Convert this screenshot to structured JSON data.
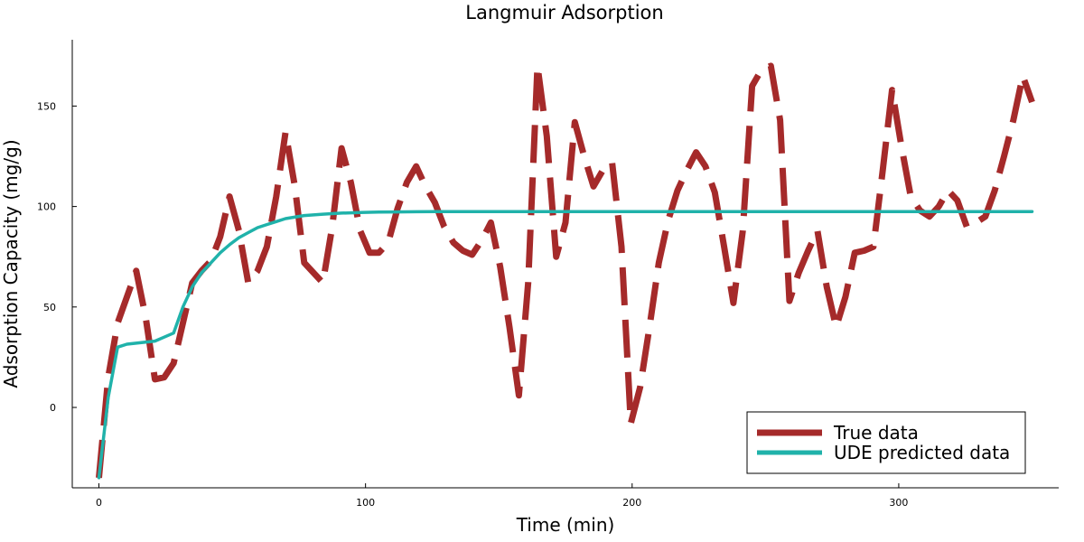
{
  "chart_data": {
    "type": "line",
    "title": "Langmuir Adsorption",
    "xlabel": "Time (min)",
    "ylabel": "Adsorption Capacity (mg/g)",
    "xlim": [
      -10,
      360
    ],
    "ylim": [
      -40,
      183
    ],
    "xticks": [
      0,
      100,
      200,
      300
    ],
    "yticks": [
      0,
      50,
      100,
      150
    ],
    "grid": false,
    "legend_position": "bottom-right",
    "series": [
      {
        "name": "True data",
        "color": "#a52a2a",
        "style": "dashed",
        "x": [
          0,
          3.5,
          7,
          10.5,
          14,
          17.5,
          21,
          24.5,
          28,
          31.5,
          35,
          38.5,
          42,
          45.5,
          49,
          52.5,
          56,
          59.5,
          63,
          66.5,
          70,
          73.5,
          77,
          80.5,
          84,
          87.5,
          91,
          94.5,
          98,
          101.5,
          105,
          108.5,
          112,
          115.5,
          119,
          122.5,
          126,
          129.5,
          133,
          136.5,
          140,
          143.5,
          147,
          150.5,
          154,
          157.5,
          161,
          164.5,
          168,
          171.5,
          175,
          178.5,
          182,
          185.5,
          189,
          192.5,
          196,
          199.5,
          203,
          206.5,
          210,
          213.5,
          217,
          220.5,
          224,
          227.5,
          231,
          234.5,
          238,
          241.5,
          245,
          248.5,
          252,
          255.5,
          259,
          262.5,
          266,
          269.5,
          273,
          276.5,
          280,
          283.5,
          287,
          290.5,
          294,
          297.5,
          301,
          304.5,
          308,
          311.5,
          315,
          318.5,
          322,
          325.5,
          329,
          332.5,
          336,
          339.5,
          343,
          346.5,
          350
        ],
        "y": [
          -35,
          15,
          42,
          55,
          68,
          45,
          14,
          15,
          22,
          42,
          62,
          68,
          73,
          85,
          105,
          88,
          62,
          68,
          80,
          105,
          137,
          110,
          72,
          67,
          62,
          90,
          129,
          112,
          88,
          77,
          77,
          82,
          99,
          112,
          120,
          110,
          102,
          90,
          82,
          78,
          76,
          83,
          92,
          70,
          40,
          6,
          62,
          170,
          135,
          75,
          92,
          142,
          125,
          110,
          118,
          122,
          80,
          -8,
          10,
          40,
          72,
          93,
          108,
          118,
          127,
          120,
          107,
          80,
          52,
          88,
          160,
          168,
          170,
          143,
          53,
          67,
          78,
          88,
          60,
          40,
          55,
          77,
          78,
          80,
          118,
          158,
          130,
          105,
          98,
          95,
          100,
          108,
          103,
          90,
          92,
          95,
          108,
          125,
          143,
          165,
          152
        ]
      },
      {
        "name": "UDE predicted data",
        "color": "#20b2aa",
        "style": "solid",
        "x": [
          0,
          3.5,
          7,
          10.5,
          14,
          17.5,
          21,
          24.5,
          28,
          31.5,
          35,
          38.5,
          42,
          45.5,
          49,
          52.5,
          56,
          59.5,
          63,
          66.5,
          70,
          77,
          84,
          91,
          98,
          105,
          112,
          119,
          126,
          140,
          160,
          200,
          250,
          300,
          350
        ],
        "y": [
          -35,
          5,
          30,
          31.5,
          32,
          32.5,
          33,
          35,
          37,
          50,
          60,
          67,
          72,
          77,
          81,
          84.5,
          87,
          89.5,
          91,
          92.5,
          94,
          95.5,
          96.2,
          96.7,
          97,
          97.2,
          97.3,
          97.4,
          97.5,
          97.5,
          97.5,
          97.5,
          97.5,
          97.5,
          97.5
        ]
      }
    ]
  }
}
